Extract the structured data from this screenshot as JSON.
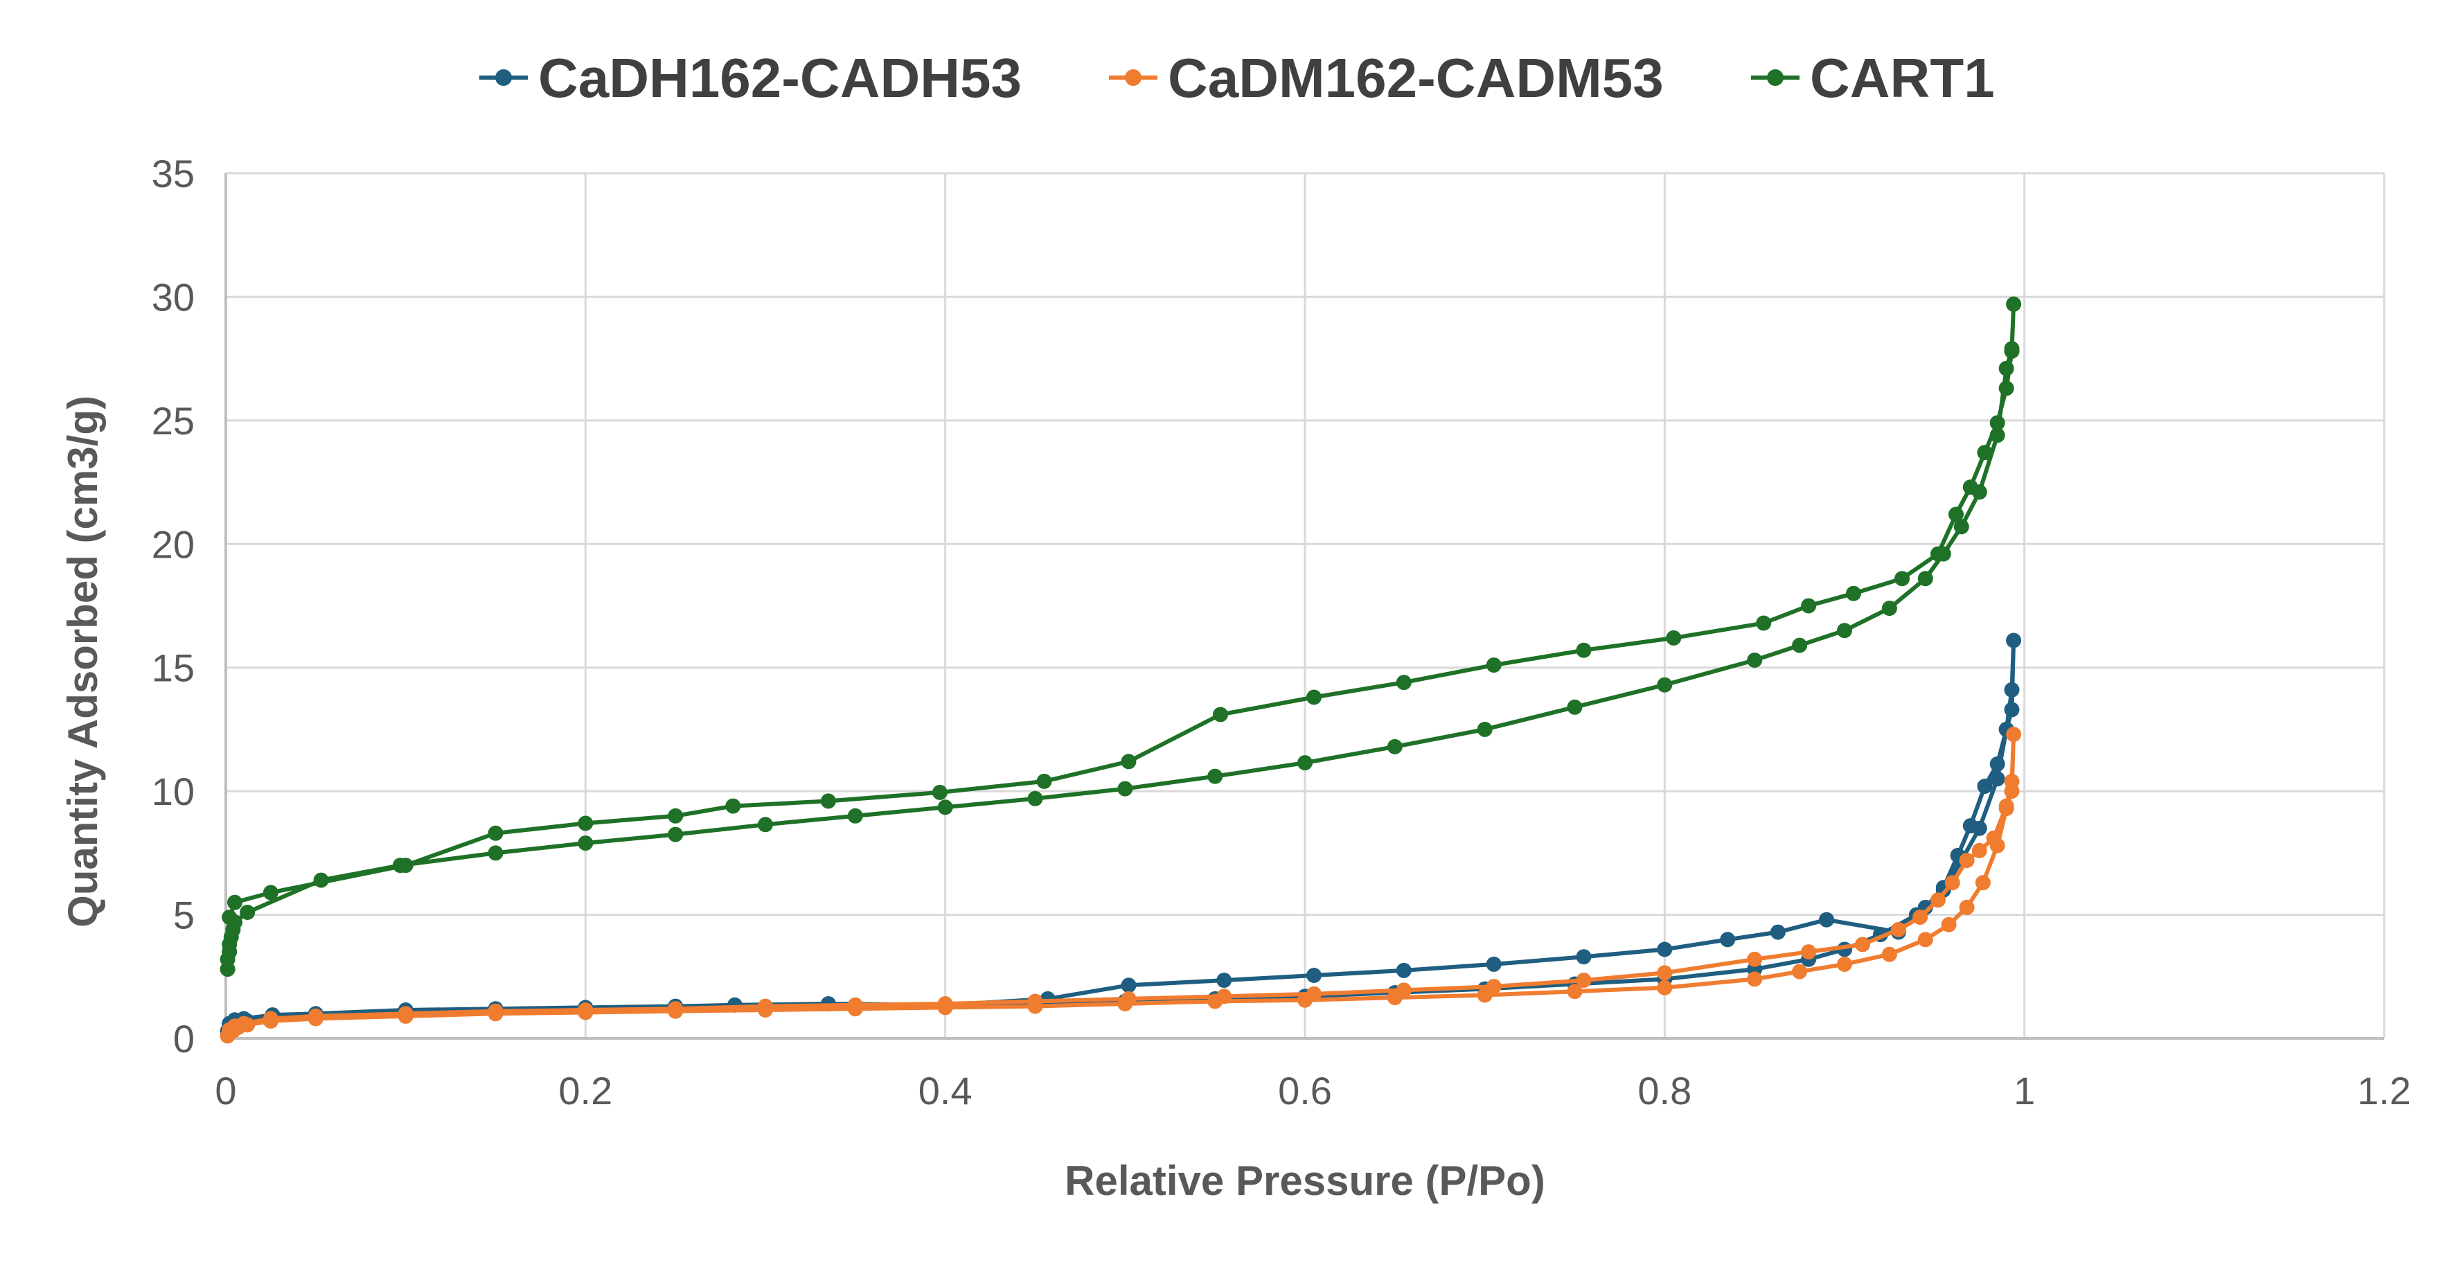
{
  "chart_data": {
    "type": "line",
    "title": "",
    "xlabel": "Relative Pressure (P/Po)",
    "ylabel": "Quantity Adsorbed (cm3/g)",
    "xlim": [
      0,
      1.2
    ],
    "ylim": [
      0,
      35
    ],
    "xticks": [
      0,
      0.2,
      0.4,
      0.6,
      0.8,
      1,
      1.2
    ],
    "xtick_labels": [
      "0",
      "0.2",
      "0.4",
      "0.6",
      "0.8",
      "1",
      "1.2"
    ],
    "yticks": [
      0,
      5,
      10,
      15,
      20,
      25,
      30,
      35
    ],
    "ytick_labels": [
      "0",
      "5",
      "10",
      "15",
      "20",
      "25",
      "30",
      "35"
    ],
    "grid": true,
    "legend_position": "top",
    "series": [
      {
        "name": "CaDH162-CADH53",
        "color": "#1F5E80",
        "x": [
          0.001,
          0.002,
          0.004,
          0.007,
          0.012,
          0.025,
          0.05,
          0.1,
          0.15,
          0.2,
          0.25,
          0.3,
          0.35,
          0.4,
          0.45,
          0.5,
          0.55,
          0.6,
          0.65,
          0.7,
          0.75,
          0.8,
          0.85,
          0.88,
          0.9,
          0.92,
          0.94,
          0.955,
          0.965,
          0.975,
          0.985,
          0.99,
          0.993,
          0.994,
          0.993,
          0.99,
          0.985,
          0.978,
          0.97,
          0.963,
          0.955,
          0.945,
          0.93,
          0.89,
          0.863,
          0.835,
          0.8,
          0.755,
          0.705,
          0.655,
          0.605,
          0.555,
          0.502,
          0.457,
          0.4,
          0.335,
          0.283,
          0.25,
          0.2,
          0.15,
          0.1,
          0.05,
          0.026,
          0.01,
          0.005,
          0.002
        ],
        "y": [
          0.3,
          0.4,
          0.5,
          0.6,
          0.7,
          0.8,
          0.9,
          1.0,
          1.1,
          1.15,
          1.2,
          1.25,
          1.3,
          1.35,
          1.4,
          1.5,
          1.6,
          1.7,
          1.85,
          2.0,
          2.2,
          2.4,
          2.8,
          3.2,
          3.6,
          4.2,
          5.0,
          6.0,
          7.2,
          8.5,
          10.5,
          12.5,
          13.3,
          16.1,
          14.1,
          12.5,
          11.1,
          10.2,
          8.6,
          7.4,
          6.1,
          5.3,
          4.3,
          4.8,
          4.3,
          4.0,
          3.6,
          3.3,
          3.0,
          2.75,
          2.55,
          2.35,
          2.15,
          1.6,
          1.35,
          1.4,
          1.35,
          1.3,
          1.25,
          1.2,
          1.15,
          1.0,
          0.95,
          0.8,
          0.75,
          0.6
        ]
      },
      {
        "name": "CaDM162-CADM53",
        "color": "#F07C30",
        "x": [
          0.001,
          0.002,
          0.004,
          0.007,
          0.012,
          0.025,
          0.05,
          0.1,
          0.15,
          0.2,
          0.25,
          0.3,
          0.35,
          0.4,
          0.45,
          0.5,
          0.55,
          0.6,
          0.65,
          0.7,
          0.75,
          0.8,
          0.85,
          0.875,
          0.9,
          0.925,
          0.945,
          0.958,
          0.968,
          0.977,
          0.985,
          0.99,
          0.993,
          0.994,
          0.993,
          0.99,
          0.983,
          0.975,
          0.968,
          0.96,
          0.952,
          0.942,
          0.93,
          0.91,
          0.88,
          0.85,
          0.8,
          0.755,
          0.705,
          0.655,
          0.605,
          0.555,
          0.502,
          0.45,
          0.4,
          0.35,
          0.3,
          0.25,
          0.2,
          0.15,
          0.1,
          0.05,
          0.025,
          0.01,
          0.005,
          0.002
        ],
        "y": [
          0.1,
          0.2,
          0.3,
          0.45,
          0.55,
          0.7,
          0.8,
          0.9,
          1.0,
          1.05,
          1.1,
          1.15,
          1.2,
          1.25,
          1.3,
          1.4,
          1.5,
          1.55,
          1.65,
          1.75,
          1.9,
          2.05,
          2.4,
          2.7,
          3.0,
          3.4,
          4.0,
          4.6,
          5.3,
          6.3,
          7.8,
          9.3,
          10.0,
          12.3,
          10.4,
          9.4,
          8.1,
          7.6,
          7.2,
          6.3,
          5.6,
          4.9,
          4.4,
          3.8,
          3.5,
          3.2,
          2.65,
          2.35,
          2.1,
          1.95,
          1.8,
          1.7,
          1.6,
          1.5,
          1.4,
          1.35,
          1.3,
          1.2,
          1.15,
          1.1,
          1.0,
          0.9,
          0.8,
          0.6,
          0.5,
          0.35
        ]
      },
      {
        "name": "CART1",
        "color": "#1E7126",
        "x": [
          0.001,
          0.001,
          0.002,
          0.002,
          0.003,
          0.004,
          0.005,
          0.012,
          0.053,
          0.097,
          0.15,
          0.2,
          0.25,
          0.3,
          0.35,
          0.4,
          0.45,
          0.5,
          0.55,
          0.6,
          0.65,
          0.7,
          0.75,
          0.8,
          0.85,
          0.875,
          0.9,
          0.925,
          0.945,
          0.955,
          0.965,
          0.975,
          0.985,
          0.99,
          0.993,
          0.994,
          0.993,
          0.99,
          0.985,
          0.978,
          0.97,
          0.962,
          0.952,
          0.932,
          0.905,
          0.88,
          0.855,
          0.805,
          0.755,
          0.705,
          0.655,
          0.605,
          0.553,
          0.502,
          0.455,
          0.397,
          0.335,
          0.282,
          0.25,
          0.2,
          0.15,
          0.1,
          0.025,
          0.005,
          0.002
        ],
        "y": [
          2.8,
          3.2,
          3.5,
          3.8,
          4.1,
          4.4,
          4.7,
          5.1,
          6.4,
          7.0,
          7.5,
          7.9,
          8.25,
          8.65,
          9.0,
          9.35,
          9.7,
          10.1,
          10.6,
          11.15,
          11.8,
          12.5,
          13.4,
          14.3,
          15.3,
          15.9,
          16.5,
          17.4,
          18.6,
          19.6,
          20.7,
          22.1,
          24.4,
          27.1,
          27.9,
          29.7,
          27.8,
          26.3,
          24.9,
          23.7,
          22.3,
          21.2,
          19.6,
          18.6,
          18.0,
          17.5,
          16.8,
          16.2,
          15.7,
          15.1,
          14.4,
          13.8,
          13.1,
          11.2,
          10.4,
          9.95,
          9.6,
          9.4,
          9.0,
          8.7,
          8.3,
          7.0,
          5.9,
          5.5,
          4.9
        ]
      }
    ]
  }
}
